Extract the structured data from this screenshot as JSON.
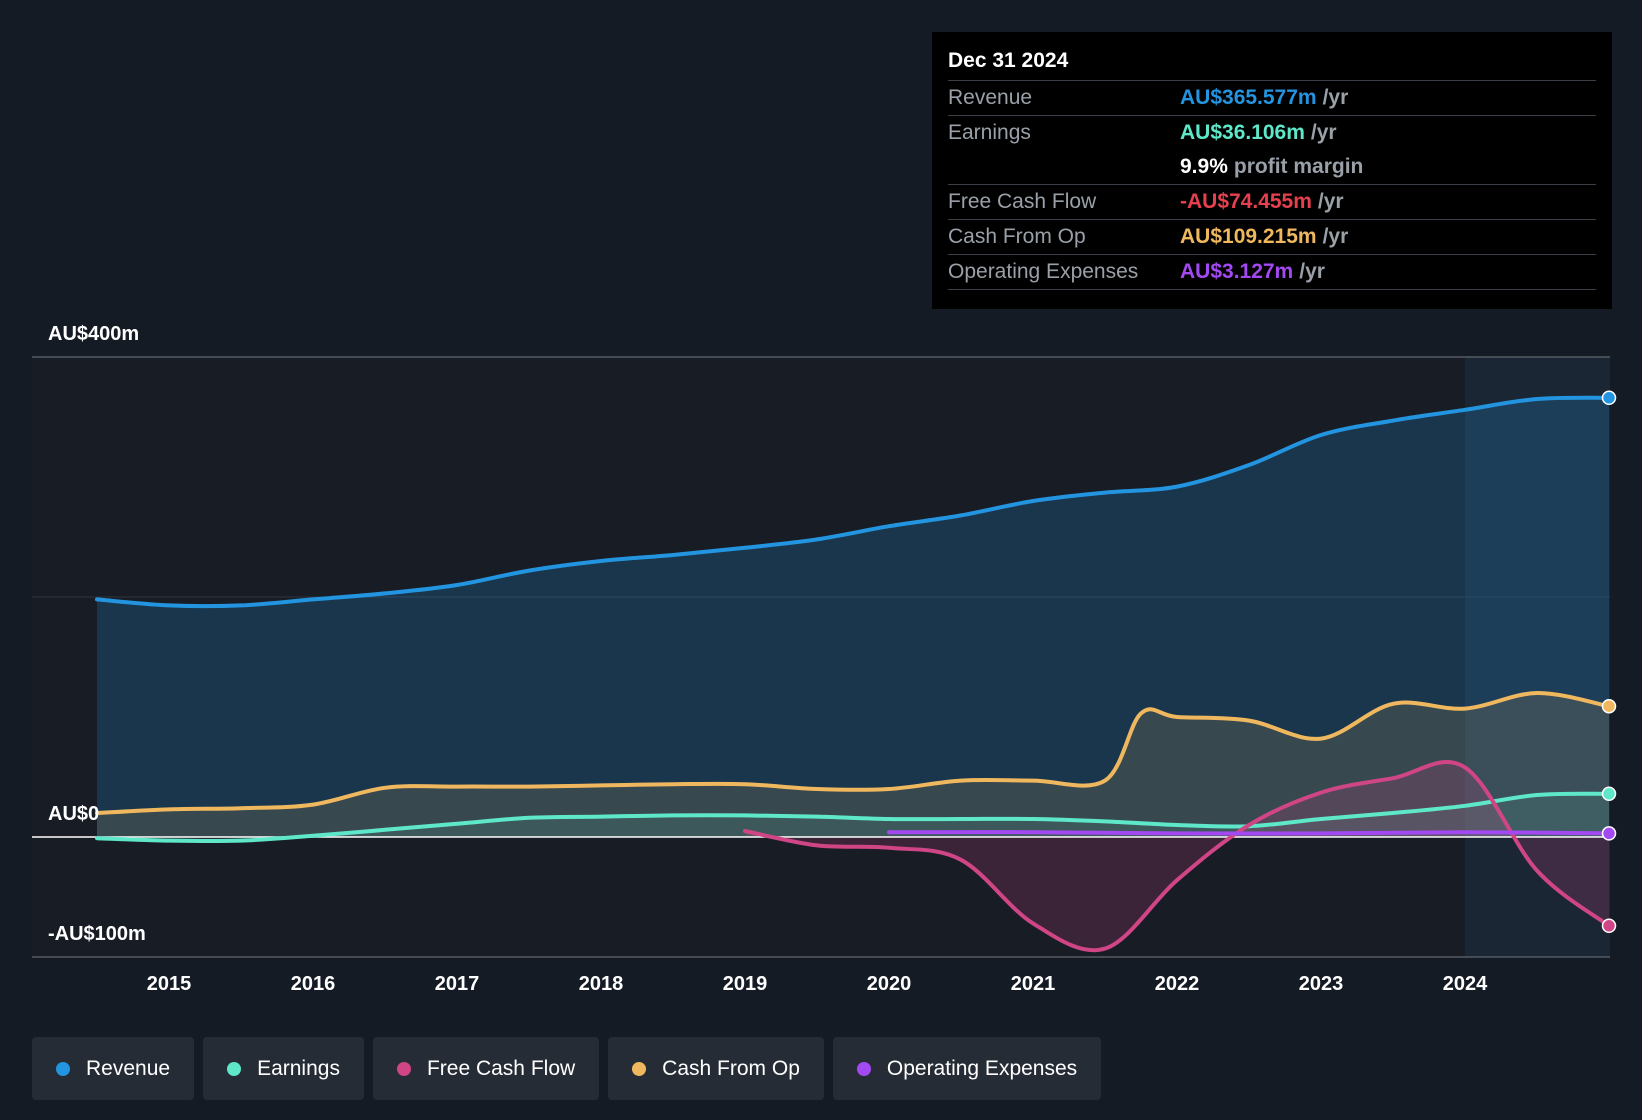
{
  "tooltip": {
    "date": "Dec 31 2024",
    "rows": [
      {
        "label": "Revenue",
        "value": "AU$365.577m",
        "unit": "/yr",
        "color": "#2394df"
      },
      {
        "label": "Earnings",
        "value": "AU$36.106m",
        "unit": "/yr",
        "color": "#5ee8c9"
      },
      {
        "label": "",
        "value": "9.9%",
        "unit": "profit margin",
        "color": "#ffffff"
      },
      {
        "label": "Free Cash Flow",
        "value": "-AU$74.455m",
        "unit": "/yr",
        "color": "#e6404f"
      },
      {
        "label": "Cash From Op",
        "value": "AU$109.215m",
        "unit": "/yr",
        "color": "#f0b85e"
      },
      {
        "label": "Operating Expenses",
        "value": "AU$3.127m",
        "unit": "/yr",
        "color": "#a349f2"
      }
    ]
  },
  "legend": [
    {
      "label": "Revenue",
      "color": "#2394df"
    },
    {
      "label": "Earnings",
      "color": "#5ee8c9"
    },
    {
      "label": "Free Cash Flow",
      "color": "#cf4585"
    },
    {
      "label": "Cash From Op",
      "color": "#f0b85e"
    },
    {
      "label": "Operating Expenses",
      "color": "#a349f2"
    }
  ],
  "chart_data": {
    "type": "area",
    "title": "",
    "xlabel": "",
    "ylabel": "",
    "x_ticks": [
      "2015",
      "2016",
      "2017",
      "2018",
      "2019",
      "2020",
      "2021",
      "2022",
      "2023",
      "2024"
    ],
    "xlim": [
      2014.5,
      2025.0
    ],
    "y_labels": [
      "AU$400m",
      "AU$0",
      "-AU$100m"
    ],
    "ylim": [
      -100,
      400
    ],
    "highlight_from": 2024.0,
    "series": [
      {
        "name": "Revenue",
        "color": "#2394df",
        "points": [
          [
            2014.5,
            198
          ],
          [
            2015.0,
            193
          ],
          [
            2015.5,
            193
          ],
          [
            2016.0,
            198
          ],
          [
            2016.5,
            203
          ],
          [
            2017.0,
            210
          ],
          [
            2017.5,
            222
          ],
          [
            2018.0,
            230
          ],
          [
            2018.5,
            235
          ],
          [
            2019.0,
            241
          ],
          [
            2019.5,
            248
          ],
          [
            2020.0,
            259
          ],
          [
            2020.5,
            268
          ],
          [
            2021.0,
            280
          ],
          [
            2021.5,
            287
          ],
          [
            2022.0,
            292
          ],
          [
            2022.5,
            310
          ],
          [
            2023.0,
            335
          ],
          [
            2023.5,
            347
          ],
          [
            2024.0,
            356
          ],
          [
            2024.5,
            365
          ],
          [
            2025.0,
            366
          ]
        ]
      },
      {
        "name": "Cash From Op",
        "color": "#f0b85e",
        "points": [
          [
            2014.5,
            20
          ],
          [
            2015.0,
            23
          ],
          [
            2015.5,
            24
          ],
          [
            2016.0,
            27
          ],
          [
            2016.5,
            41
          ],
          [
            2017.0,
            42
          ],
          [
            2017.5,
            42
          ],
          [
            2018.0,
            43
          ],
          [
            2018.5,
            44
          ],
          [
            2019.0,
            44
          ],
          [
            2019.5,
            40
          ],
          [
            2020.0,
            40
          ],
          [
            2020.5,
            47
          ],
          [
            2021.0,
            47
          ],
          [
            2021.5,
            47
          ],
          [
            2021.75,
            103
          ],
          [
            2022.0,
            100
          ],
          [
            2022.5,
            97
          ],
          [
            2023.0,
            82
          ],
          [
            2023.5,
            111
          ],
          [
            2024.0,
            107
          ],
          [
            2024.5,
            120
          ],
          [
            2025.0,
            109
          ]
        ]
      },
      {
        "name": "Earnings",
        "color": "#5ee8c9",
        "points": [
          [
            2014.5,
            -1
          ],
          [
            2015.0,
            -3
          ],
          [
            2015.5,
            -3
          ],
          [
            2016.0,
            1
          ],
          [
            2016.5,
            6
          ],
          [
            2017.0,
            11
          ],
          [
            2017.5,
            16
          ],
          [
            2018.0,
            17
          ],
          [
            2018.5,
            18
          ],
          [
            2019.0,
            18
          ],
          [
            2019.5,
            17
          ],
          [
            2020.0,
            15
          ],
          [
            2020.5,
            15
          ],
          [
            2021.0,
            15
          ],
          [
            2021.5,
            13
          ],
          [
            2022.0,
            10
          ],
          [
            2022.5,
            9
          ],
          [
            2023.0,
            15
          ],
          [
            2023.5,
            20
          ],
          [
            2024.0,
            26
          ],
          [
            2024.5,
            35
          ],
          [
            2025.0,
            36
          ]
        ]
      },
      {
        "name": "Free Cash Flow",
        "color": "#cf4585",
        "points": [
          [
            2019.0,
            5
          ],
          [
            2019.5,
            -7
          ],
          [
            2020.0,
            -9
          ],
          [
            2020.5,
            -19
          ],
          [
            2021.0,
            -72
          ],
          [
            2021.5,
            -93
          ],
          [
            2022.0,
            -36
          ],
          [
            2022.5,
            10
          ],
          [
            2023.0,
            37
          ],
          [
            2023.5,
            49
          ],
          [
            2024.0,
            58
          ],
          [
            2024.5,
            -28
          ],
          [
            2025.0,
            -74
          ]
        ]
      },
      {
        "name": "Operating Expenses",
        "color": "#a349f2",
        "points": [
          [
            2020.0,
            4
          ],
          [
            2021.0,
            4
          ],
          [
            2022.0,
            3
          ],
          [
            2023.0,
            3
          ],
          [
            2024.0,
            4
          ],
          [
            2025.0,
            3
          ]
        ]
      }
    ]
  }
}
